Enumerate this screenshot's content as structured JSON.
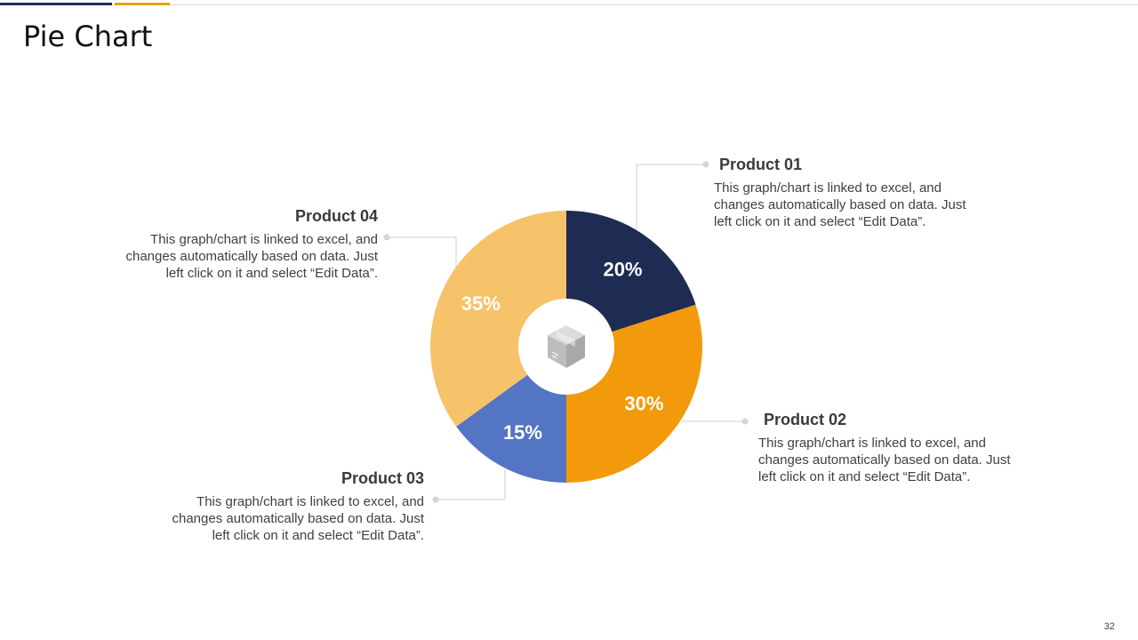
{
  "title": "Pie Chart",
  "page_number": "32",
  "colors": {
    "accent_dark": "#1f2d57",
    "accent_gold": "#e8a317"
  },
  "center_icon": "box-icon",
  "chart_data": {
    "type": "pie",
    "style": "donut",
    "categories": [
      "Product 01",
      "Product 02",
      "Product 03",
      "Product 04"
    ],
    "values": [
      20,
      30,
      15,
      35
    ],
    "labels": [
      "20%",
      "30%",
      "15%",
      "35%"
    ],
    "colors": [
      "#1e2b52",
      "#f39a0c",
      "#5474c4",
      "#f6c26a"
    ],
    "title": ""
  },
  "callouts": [
    {
      "title": "Product 01",
      "text": "This graph/chart is linked to excel, and changes automatically based on data. Just left click on it and select “Edit Data”."
    },
    {
      "title": "Product 02",
      "text": "This graph/chart is linked to excel, and changes automatically based on data. Just left click on it and select “Edit Data”."
    },
    {
      "title": "Product 03",
      "text": "This graph/chart is linked to excel, and changes automatically based on data. Just left click on it and select “Edit Data”."
    },
    {
      "title": "Product 04",
      "text": "This graph/chart is linked to excel, and changes automatically based on data. Just left click on it and select “Edit Data”."
    }
  ]
}
